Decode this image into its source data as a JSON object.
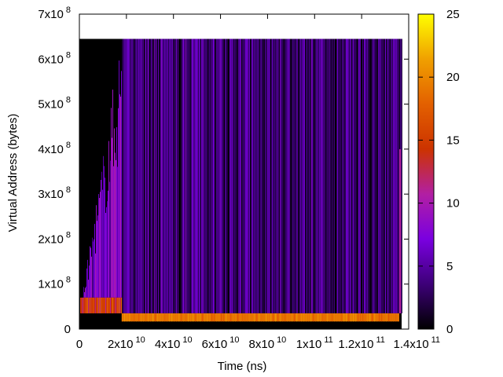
{
  "chart_data": {
    "type": "heatmap",
    "title": "",
    "xlabel": "Time (ns)",
    "ylabel": "Virtual Address (bytes)",
    "xlim": [
      0,
      140000000000
    ],
    "ylim": [
      0,
      700000000
    ],
    "x_ticks": [
      {
        "value": 0,
        "mantissa": "0",
        "exp": ""
      },
      {
        "value": 20000000000,
        "mantissa": "2x10",
        "exp": "10"
      },
      {
        "value": 40000000000,
        "mantissa": "4x10",
        "exp": "10"
      },
      {
        "value": 60000000000,
        "mantissa": "6x10",
        "exp": "10"
      },
      {
        "value": 80000000000,
        "mantissa": "8x10",
        "exp": "10"
      },
      {
        "value": 100000000000,
        "mantissa": "1x10",
        "exp": "11"
      },
      {
        "value": 120000000000,
        "mantissa": "1.2x10",
        "exp": "11"
      },
      {
        "value": 140000000000,
        "mantissa": "1.4x10",
        "exp": "11"
      }
    ],
    "y_ticks": [
      {
        "value": 0,
        "mantissa": "0",
        "exp": ""
      },
      {
        "value": 100000000,
        "mantissa": "1x10",
        "exp": "8"
      },
      {
        "value": 200000000,
        "mantissa": "2x10",
        "exp": "8"
      },
      {
        "value": 300000000,
        "mantissa": "3x10",
        "exp": "8"
      },
      {
        "value": 400000000,
        "mantissa": "4x10",
        "exp": "8"
      },
      {
        "value": 500000000,
        "mantissa": "5x10",
        "exp": "8"
      },
      {
        "value": 600000000,
        "mantissa": "6x10",
        "exp": "8"
      },
      {
        "value": 700000000,
        "mantissa": "7x10",
        "exp": "8"
      }
    ],
    "colorbar": {
      "range": [
        0,
        25
      ],
      "ticks": [
        "0",
        "5",
        "10",
        "15",
        "20",
        "25"
      ],
      "palette": [
        "#000000",
        "#3d0078",
        "#7a00e0",
        "#b21fa3",
        "#cc3300",
        "#e36000",
        "#f0a000",
        "#ffff00"
      ]
    },
    "data_extent": {
      "x": [
        0,
        137000000000
      ],
      "y": [
        0,
        645000000
      ],
      "ramp_end_x": 18000000000,
      "dense_band_y": [
        17000000,
        35000000
      ],
      "dense_band_value": 19,
      "early_band_y": [
        35000000,
        70000000
      ],
      "early_band_value": 15,
      "stripe_value_range": [
        2,
        9
      ]
    },
    "grid": false,
    "legend": "colorbar-right"
  }
}
